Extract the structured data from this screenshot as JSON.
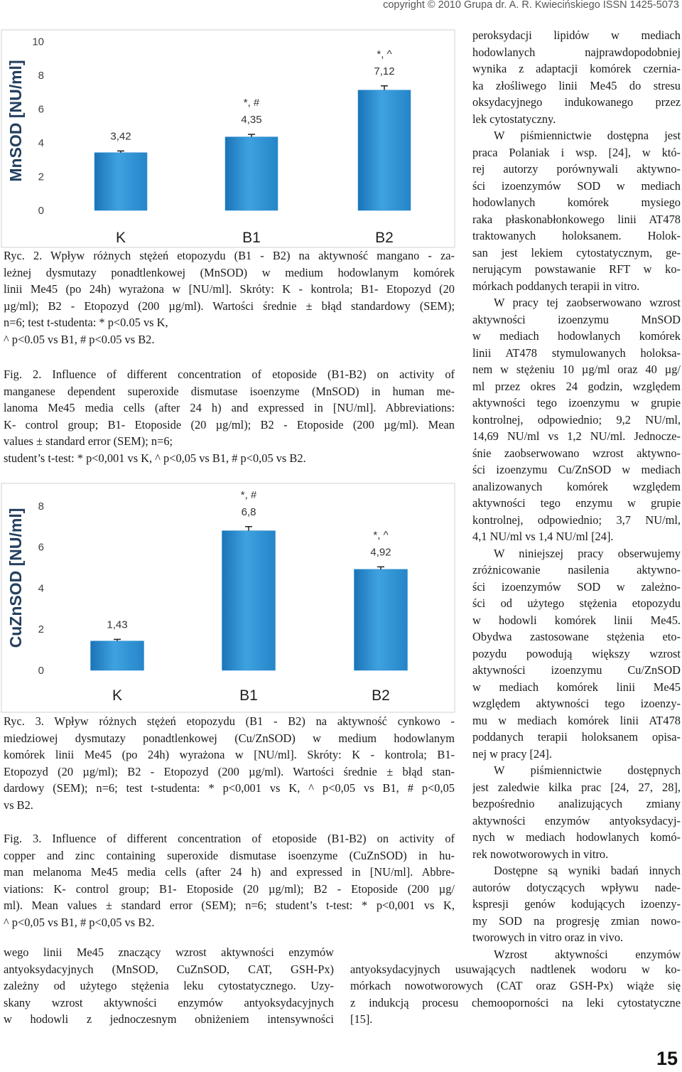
{
  "header": {
    "copyright": "copyright © 2010 Grupa dr. A. R. Kwiecińskiego ISSN 1425-5073"
  },
  "chart_data": [
    {
      "type": "bar",
      "y_label": "MnSOD [NU/ml]",
      "categories": [
        "K",
        "B1",
        "B2"
      ],
      "values": [
        3.42,
        4.35,
        7.12
      ],
      "value_labels": [
        "3,42",
        "4,35",
        "7,12"
      ],
      "annotations": [
        null,
        "*, #",
        "*, ^"
      ],
      "errors": [
        0.1,
        0.15,
        0.25
      ],
      "color": "#2a8dd2",
      "ylim": [
        0,
        10.6
      ],
      "yticks": [
        0,
        2,
        4,
        6,
        8,
        10
      ]
    },
    {
      "type": "bar",
      "y_label": "CuZnSOD [NU/ml]",
      "categories": [
        "K",
        "B1",
        "B2"
      ],
      "values": [
        1.43,
        6.8,
        4.92
      ],
      "value_labels": [
        "1,43",
        "6,8",
        "4,92"
      ],
      "annotations": [
        null,
        "*, #",
        "*, ^"
      ],
      "errors": [
        0.08,
        0.2,
        0.12
      ],
      "color": "#2a8dd2",
      "ylim": [
        0,
        9
      ],
      "yticks": [
        0,
        2,
        4,
        6,
        8
      ]
    }
  ],
  "captions": [
    [
      "Ryc. 2. Wpływ różnych stężeń etopozydu (B1 - B2) na aktywność mangano - za-",
      "leżnej dysmutazy ponadtlenkowej (MnSOD) w medium hodowlanym komórek",
      "linii Me45 (po 24h) wyrażona w [NU/ml]. Skróty: K - kontrola; B1- Etopozyd (20",
      "µg/ml); B2 - Etopozyd (200 µg/ml). Wartości średnie ± błąd standardowy (SEM);",
      "n=6; test t-studenta: * p<0.05 vs K,"
    ],
    [
      "^ p<0.05 vs B1, # p<0.05 vs B2."
    ],
    [
      "Fig. 2. Influence of different concentration of etoposide (B1-B2) on activity of",
      "manganese dependent superoxide dismutase isoenzyme (MnSOD) in human me-",
      "lanoma Me45 media cells (after 24 h) and expressed in [NU/ml]. Abbreviations:",
      "K- control group; B1- Etoposide (20 µg/ml); B2 - Etoposide (200 µg/ml). Mean",
      "values ± standard error (SEM); n=6;"
    ],
    [
      "student’s t-test: * p<0,001 vs K, ^ p<0,05 vs B1, # p<0,05 vs B2."
    ],
    [
      "Ryc. 3. Wpływ różnych stężeń etopozydu (B1 - B2) na aktywność cynkowo -",
      "miedziowej dysmutazy ponadtlenkowej (Cu/ZnSOD) w medium hodowlanym",
      "komórek linii Me45 (po 24h) wyrażona w [NU/ml]. Skróty: K - kontrola; B1-",
      "Etopozyd (20 µg/ml); B2 - Etopozyd (200 µg/ml). Wartości średnie ± błąd stan-",
      "dardowy (SEM); n=6; test t-studenta: * p<0,001 vs K, ^ p<0,05 vs B1, # p<0,05",
      "vs B2."
    ],
    [
      "Fig. 3. Influence of different concentration of etoposide (B1-B2) on activity of",
      "copper and zinc containing superoxide dismutase isoenzyme (CuZnSOD) in hu-",
      "man melanoma Me45 media cells (after 24 h) and expressed in [NU/ml]. Abbre-",
      "viations: K- control group; B1- Etoposide (20 µg/ml); B2 - Etoposide (200 µg/",
      "ml). Mean values ± standard error (SEM); n=6; student’s t-test: * p<0,001 vs K,",
      "^ p<0,05 vs B1, # p<0,05 vs B2."
    ]
  ],
  "body": {
    "right_column": [
      [
        "peroksydacji lipidów w mediach",
        "hodowlanych najprawdopodobniej",
        "wynika z adaptacji komórek czernia-",
        "ka złośliwego linii Me45 do stresu",
        "oksydacyjnego indukowanego przez",
        "lek cytostatyczny."
      ],
      [
        "W piśmiennictwie dostępna jest",
        "praca Polaniak i wsp. [24], w któ-",
        "rej autorzy porównywali aktywno-",
        "ści izoenzymów SOD w mediach",
        "hodowlanych komórek mysiego",
        "raka płaskonabłonkowego linii AT478",
        "traktowanych holoksanem. Holok-",
        "san jest lekiem cytostatycznym, ge-",
        "nerującym powstawanie RFT w ko-",
        "mórkach poddanych terapii in vitro."
      ],
      [
        "W pracy tej zaobserwowano wzrost",
        "aktywności izoenzymu MnSOD",
        "w mediach hodowlanych komórek",
        "linii AT478 stymulowanych holoksa-",
        "nem w stężeniu 10 µg/ml oraz 40 µg/",
        "ml przez okres 24 godzin, względem",
        "aktywności tego izoenzymu w grupie",
        "kontrolnej, odpowiednio; 9,2 NU/ml,",
        "14,69 NU/ml vs 1,2 NU/ml. Jednocze-",
        "śnie zaobserwowano wzrost aktywno-",
        "ści izoenzymu Cu/ZnSOD w mediach",
        "analizowanych komórek względem",
        "aktywności tego enzymu w grupie",
        "kontrolnej, odpowiednio; 3,7 NU/ml,",
        "4,1 NU/ml vs 1,4 NU/ml [24]."
      ],
      [
        "W niniejszej pracy obserwujemy",
        "zróżnicowanie nasilenia aktywno-",
        "ści izoenzymów SOD w zależno-",
        "ści od użytego stężenia etopozydu",
        "w hodowli komórek linii Me45.",
        "Obydwa zastosowane stężenia eto-",
        "pozydu powodują większy wzrost",
        "aktywności izoenzymu Cu/ZnSOD",
        "w mediach komórek linii Me45",
        "względem aktywności tego izoenzy-",
        "mu w mediach komórek linii AT478",
        "poddanych terapii holoksanem opisa-",
        "nej w pracy [24]."
      ],
      [
        "W piśmiennictwie dostępnych",
        "jest zaledwie kilka prac [24, 27, 28],",
        "bezpośrednio analizujących zmiany",
        "aktywności enzymów antyoksydacyj-",
        "nych w mediach hodowlanych komó-",
        "rek nowotworowych in vitro."
      ],
      [
        "Dostępne są wyniki badań innych",
        "autorów dotyczących wpływu nade-",
        "kspresji genów kodujących izoenzy-",
        "my SOD na progresję zmian nowo-",
        "tworowych in vitro oraz in vivo."
      ],
      [
        "Wzrost aktywności enzymów"
      ]
    ],
    "bottom_left": [
      "wego linii Me45 znaczący wzrost aktywności enzymów",
      "antyoksydacyjnych (MnSOD, CuZnSOD, CAT, GSH-Px)",
      "zależny od użytego stężenia leku cytostatycznego. Uzy-",
      "skany wzrost aktywności enzymów antyoksydacyjnych",
      "w hodowli z jednoczesnym obniżeniem intensywności"
    ],
    "bottom_right": [
      "antyoksydacyjnych usuwających nadtlenek wodoru w ko-",
      "mórkach nowotworowych (CAT oraz GSH-Px) wiąże się",
      "z indukcją procesu chemooporności na leki cytostatyczne",
      "[15]."
    ]
  },
  "page_number": "15"
}
